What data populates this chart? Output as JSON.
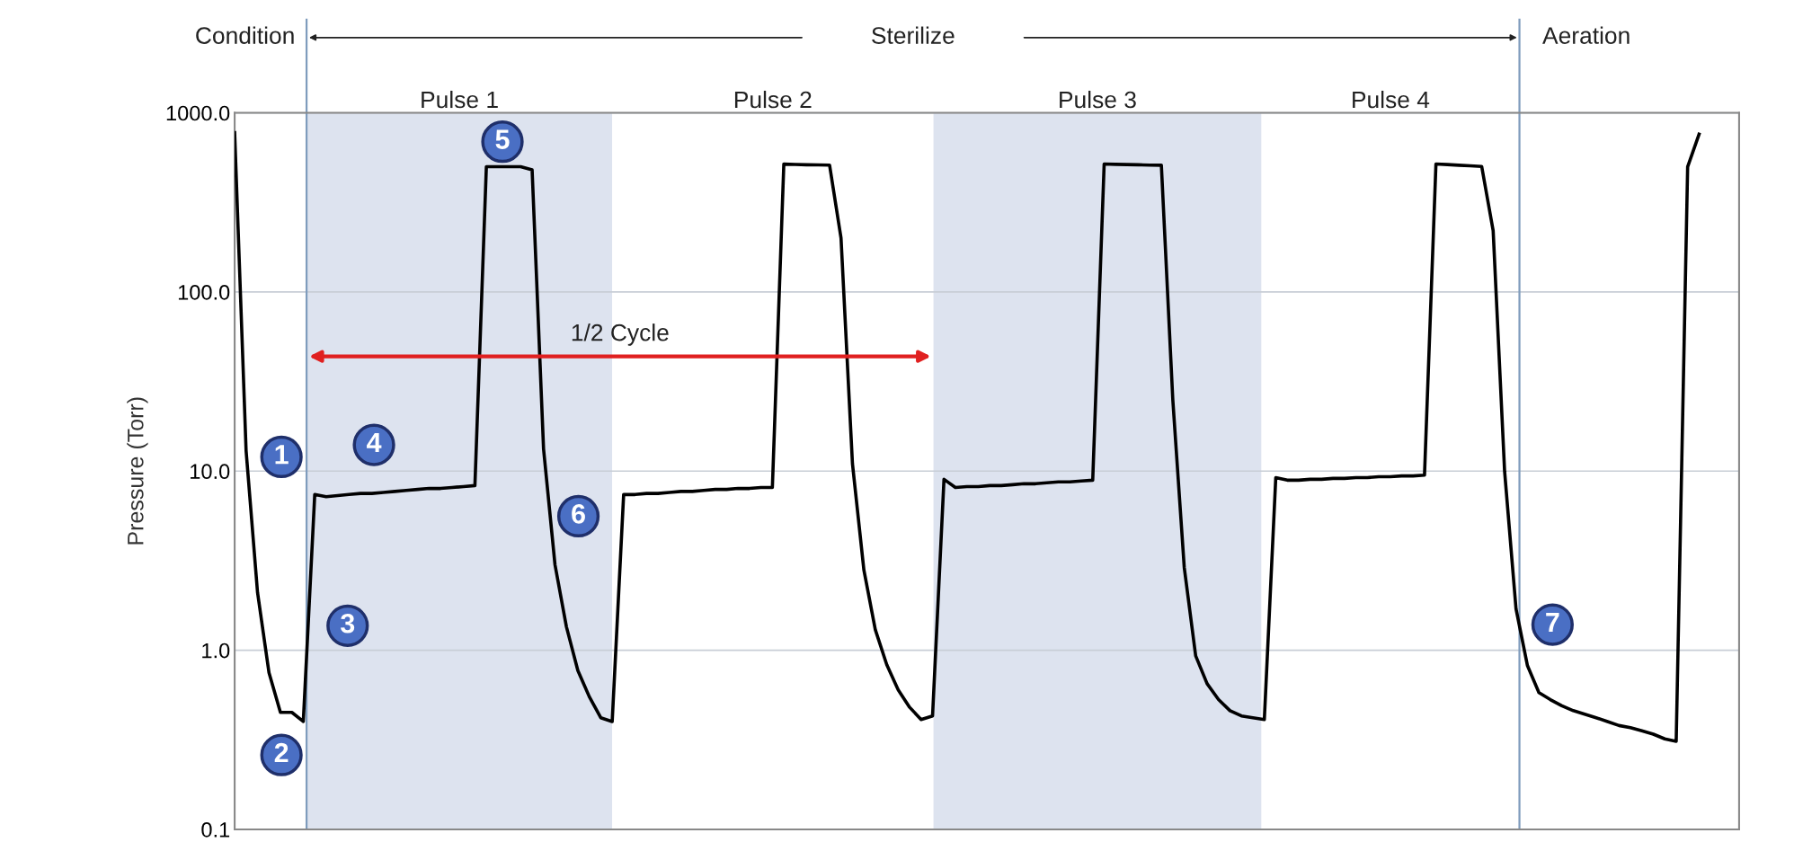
{
  "chart_data": {
    "type": "line",
    "ylabel": "Pressure (Torr)",
    "categories": [
      null,
      null,
      null,
      null,
      null,
      null,
      null,
      null,
      null,
      null,
      null,
      null,
      null,
      null,
      null,
      null,
      null,
      null,
      null,
      null,
      null,
      null,
      null,
      null,
      null,
      null,
      null,
      null,
      null,
      null,
      null,
      null,
      null,
      null,
      null,
      null,
      null,
      null,
      null,
      null,
      null,
      null,
      null,
      null,
      null,
      null,
      null,
      null,
      null,
      null,
      null,
      null,
      null,
      null,
      null,
      null,
      null,
      null,
      null,
      null,
      null,
      null,
      null,
      null,
      null,
      null,
      null,
      null,
      null,
      null,
      null,
      null,
      null,
      null,
      null,
      null,
      null,
      null,
      null,
      null,
      null,
      null,
      null,
      null,
      null,
      null,
      null,
      null,
      null,
      null,
      null,
      null,
      null,
      null,
      null,
      null,
      null,
      null,
      null,
      null,
      null,
      null,
      null,
      null,
      null,
      null,
      null,
      null,
      null,
      null,
      null,
      null,
      null,
      null,
      null,
      null,
      null,
      null,
      null,
      null,
      null,
      null,
      null,
      null,
      null,
      null,
      null,
      null,
      null
    ],
    "series": [
      {
        "color": "#000000",
        "values": [
          775,
          13,
          2.1,
          0.75,
          0.45,
          0.45,
          0.4,
          7.4,
          7.2,
          7.3,
          7.4,
          7.5,
          7.5,
          7.6,
          7.7,
          7.8,
          7.9,
          8.0,
          8.0,
          8.1,
          8.2,
          8.3,
          500,
          500,
          500,
          500,
          480,
          13.3,
          3.0,
          1.35,
          0.77,
          0.55,
          0.42,
          0.4,
          7.4,
          7.4,
          7.5,
          7.5,
          7.6,
          7.7,
          7.7,
          7.8,
          7.9,
          7.9,
          8.0,
          8.0,
          8.1,
          8.1,
          517,
          515,
          513,
          512,
          511,
          200,
          11,
          2.8,
          1.3,
          0.83,
          0.6,
          0.48,
          0.41,
          0.43,
          9.0,
          8.1,
          8.2,
          8.2,
          8.3,
          8.3,
          8.4,
          8.5,
          8.5,
          8.6,
          8.7,
          8.7,
          8.8,
          8.9,
          518,
          516,
          514,
          513,
          511,
          510,
          25,
          2.9,
          0.93,
          0.65,
          0.53,
          0.46,
          0.43,
          0.42,
          0.41,
          9.2,
          8.9,
          8.9,
          9.0,
          9.0,
          9.1,
          9.1,
          9.2,
          9.2,
          9.3,
          9.3,
          9.4,
          9.4,
          9.5,
          518,
          514,
          510,
          506,
          502,
          220,
          10,
          1.7,
          0.82,
          0.58,
          0.53,
          0.49,
          0.46,
          0.44,
          0.42,
          0.4,
          0.38,
          0.37,
          0.355,
          0.34,
          0.32,
          0.31,
          500,
          760
        ]
      }
    ],
    "log": true,
    "ylim": [
      0.1,
      1000
    ],
    "yticks": [
      0.1,
      {
        "value": 1,
        "label": "1.0"
      },
      {
        "value": 10,
        "label": "10.0"
      },
      {
        "value": 100,
        "label": "100.0"
      },
      {
        "value": 1000,
        "label": "1000.0"
      }
    ],
    "tick_labels": "y",
    "grid": "y",
    "marker": "none",
    "line_style": "solid",
    "annotations": [
      "Condition",
      "Sterilize",
      "Aeration",
      "1/2 Cycle",
      "Pulse 1",
      "Pulse 2",
      "Pulse 3",
      "Pulse 4",
      {
        "text": "1",
        "y": 12
      },
      {
        "text": "2",
        "y": 0.26
      },
      {
        "text": "3",
        "y": 1.37
      },
      {
        "text": "4",
        "y": 14
      },
      {
        "text": "5",
        "y": 690
      },
      {
        "text": "6",
        "y": 5.6
      },
      {
        "text": "7",
        "y": 1.39
      }
    ]
  }
}
